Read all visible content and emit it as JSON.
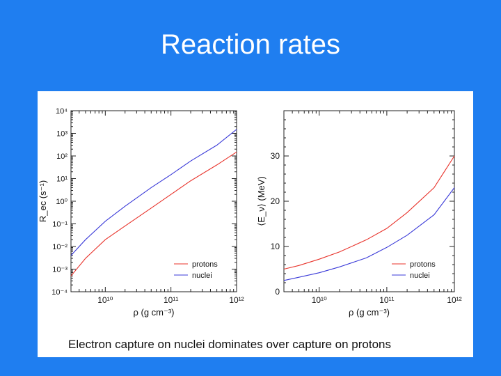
{
  "slide": {
    "title": "Reaction rates",
    "caption": "Electron capture on nuclei dominates over capture on protons"
  },
  "colors": {
    "background": "#1f7ef0",
    "protons": "#e8322a",
    "nuclei": "#3a3ad8",
    "panel": "#ffffff"
  },
  "chart_data": [
    {
      "type": "line",
      "id": "left",
      "xscale": "log",
      "yscale": "log",
      "xlim": [
        3000000000.0,
        1000000000000.0
      ],
      "ylim": [
        0.0001,
        10000.0
      ],
      "xlabel": "ρ (g cm⁻³)",
      "ylabel": "R_ec (s⁻¹)",
      "xticks": [
        "10¹⁰",
        "10¹¹",
        "10¹²"
      ],
      "yticks": [
        "10⁻⁴",
        "10⁻³",
        "10⁻²",
        "10⁻¹",
        "10⁰",
        "10¹",
        "10²",
        "10³",
        "10⁴"
      ],
      "legend": "bottom-right",
      "series": [
        {
          "name": "protons",
          "x": [
            3000000000.0,
            5000000000.0,
            10000000000.0,
            20000000000.0,
            50000000000.0,
            100000000000.0,
            200000000000.0,
            500000000000.0,
            1000000000000.0
          ],
          "y": [
            0.0005,
            0.003,
            0.02,
            0.08,
            0.5,
            2,
            8,
            40,
            150
          ]
        },
        {
          "name": "nuclei",
          "x": [
            3000000000.0,
            5000000000.0,
            10000000000.0,
            20000000000.0,
            50000000000.0,
            100000000000.0,
            200000000000.0,
            500000000000.0,
            1000000000000.0
          ],
          "y": [
            0.004,
            0.02,
            0.13,
            0.6,
            4,
            15,
            60,
            300,
            1500
          ]
        }
      ]
    },
    {
      "type": "line",
      "id": "right",
      "xscale": "log",
      "yscale": "linear",
      "xlim": [
        3000000000.0,
        1000000000000.0
      ],
      "ylim": [
        0,
        40
      ],
      "xlabel": "ρ (g cm⁻³)",
      "ylabel": "⟨E_ν⟩ (MeV)",
      "xticks": [
        "10¹⁰",
        "10¹¹",
        "10¹²"
      ],
      "yticks": [
        "0",
        "10",
        "20",
        "30"
      ],
      "legend": "bottom-right",
      "series": [
        {
          "name": "protons",
          "x": [
            3000000000.0,
            5000000000.0,
            10000000000.0,
            20000000000.0,
            50000000000.0,
            100000000000.0,
            200000000000.0,
            500000000000.0,
            1000000000000.0
          ],
          "y": [
            5,
            5.8,
            7.2,
            8.8,
            11.5,
            14,
            17.5,
            23,
            30
          ]
        },
        {
          "name": "nuclei",
          "x": [
            3000000000.0,
            5000000000.0,
            10000000000.0,
            20000000000.0,
            50000000000.0,
            100000000000.0,
            200000000000.0,
            500000000000.0,
            1000000000000.0
          ],
          "y": [
            2.5,
            3.2,
            4.2,
            5.5,
            7.5,
            9.8,
            12.5,
            17,
            23
          ]
        }
      ]
    }
  ]
}
